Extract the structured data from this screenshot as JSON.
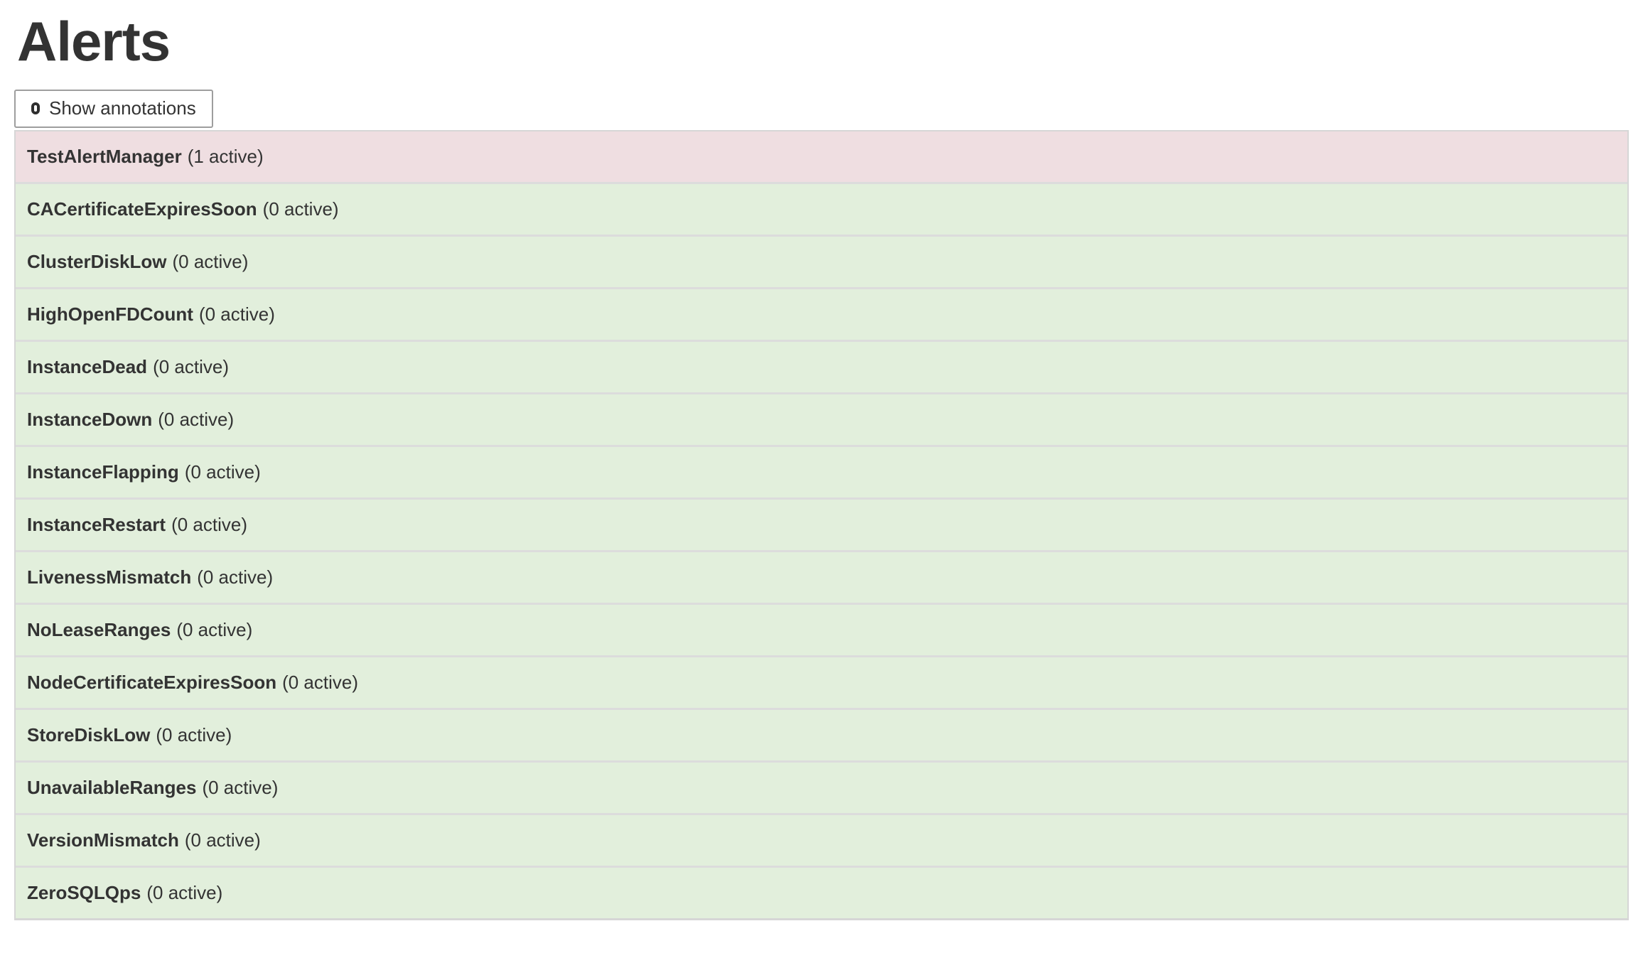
{
  "page": {
    "title": "Alerts"
  },
  "controls": {
    "show_annotations": {
      "label": "Show annotations",
      "checked": false
    }
  },
  "alerts": [
    {
      "name": "TestAlertManager",
      "active_count": 1,
      "count_label": "(1 active)",
      "state": "firing"
    },
    {
      "name": "CACertificateExpiresSoon",
      "active_count": 0,
      "count_label": "(0 active)",
      "state": "inactive"
    },
    {
      "name": "ClusterDiskLow",
      "active_count": 0,
      "count_label": "(0 active)",
      "state": "inactive"
    },
    {
      "name": "HighOpenFDCount",
      "active_count": 0,
      "count_label": "(0 active)",
      "state": "inactive"
    },
    {
      "name": "InstanceDead",
      "active_count": 0,
      "count_label": "(0 active)",
      "state": "inactive"
    },
    {
      "name": "InstanceDown",
      "active_count": 0,
      "count_label": "(0 active)",
      "state": "inactive"
    },
    {
      "name": "InstanceFlapping",
      "active_count": 0,
      "count_label": "(0 active)",
      "state": "inactive"
    },
    {
      "name": "InstanceRestart",
      "active_count": 0,
      "count_label": "(0 active)",
      "state": "inactive"
    },
    {
      "name": "LivenessMismatch",
      "active_count": 0,
      "count_label": "(0 active)",
      "state": "inactive"
    },
    {
      "name": "NoLeaseRanges",
      "active_count": 0,
      "count_label": "(0 active)",
      "state": "inactive"
    },
    {
      "name": "NodeCertificateExpiresSoon",
      "active_count": 0,
      "count_label": "(0 active)",
      "state": "inactive"
    },
    {
      "name": "StoreDiskLow",
      "active_count": 0,
      "count_label": "(0 active)",
      "state": "inactive"
    },
    {
      "name": "UnavailableRanges",
      "active_count": 0,
      "count_label": "(0 active)",
      "state": "inactive"
    },
    {
      "name": "VersionMismatch",
      "active_count": 0,
      "count_label": "(0 active)",
      "state": "inactive"
    },
    {
      "name": "ZeroSQLQps",
      "active_count": 0,
      "count_label": "(0 active)",
      "state": "inactive"
    }
  ],
  "colors": {
    "firing_bg": "#efdee1",
    "inactive_bg": "#e2efdc",
    "row_border": "#dcdcdc",
    "outer_border": "#d6d6d6",
    "text": "#333333",
    "button_border": "#9e9e9e",
    "page_bg": "#ffffff"
  }
}
